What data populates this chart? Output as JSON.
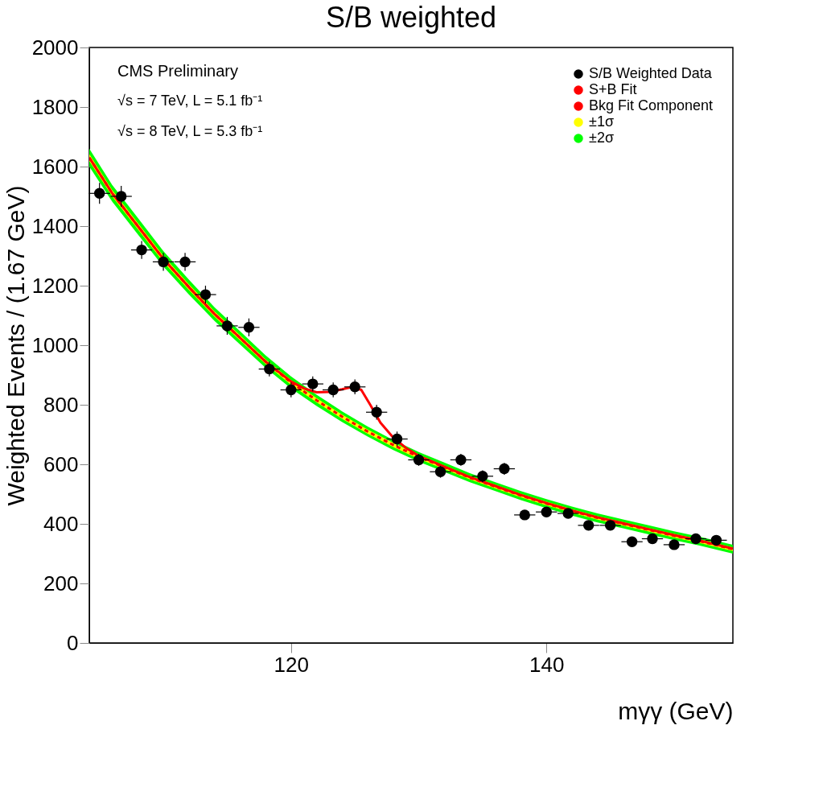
{
  "chart_data": {
    "type": "scatter",
    "title": "S/B weighted",
    "xlabel": "mγγ (GeV)",
    "ylabel": "Weighted Events / (1.67 GeV)",
    "annotations": [
      "CMS Preliminary",
      "√s = 7 TeV, L = 5.1 fb⁻¹",
      "√s = 8 TeV, L = 5.3 fb⁻¹"
    ],
    "xlim": [
      104.2,
      154.6
    ],
    "xticks": [
      120,
      140
    ],
    "ylim": [
      0,
      2000
    ],
    "yticks": [
      0,
      200,
      400,
      600,
      800,
      1000,
      1200,
      1400,
      1600,
      1800,
      2000
    ],
    "grid": false,
    "legend": "top right",
    "series": [
      {
        "name": "±2σ",
        "type": "area",
        "color": "#00ff00",
        "values": [
          null,
          null,
          null,
          null,
          null,
          null,
          null,
          null,
          null,
          null,
          null,
          null,
          null,
          null,
          null,
          null,
          null,
          null,
          null,
          null,
          null,
          null,
          null,
          null,
          null,
          null
        ],
        "x": [
          104.2,
          106,
          108,
          110,
          112,
          114,
          116,
          118,
          120,
          122,
          124,
          126,
          128,
          130,
          132,
          134,
          136,
          138,
          140,
          142,
          144,
          146,
          148,
          150,
          152,
          154.6
        ],
        "lower": [
          1600,
          1482,
          1372,
          1264,
          1170,
          1082,
          1003,
          924,
          855,
          796,
          742,
          693,
          648,
          609,
          574,
          540,
          510,
          480,
          453,
          428,
          405,
          385,
          365,
          345,
          327,
          300
        ],
        "upper": [
          1660,
          1538,
          1428,
          1316,
          1220,
          1128,
          1047,
          966,
          895,
          834,
          778,
          727,
          682,
          641,
          606,
          570,
          540,
          510,
          483,
          458,
          435,
          415,
          395,
          375,
          357,
          330
        ]
      },
      {
        "name": "±1σ",
        "type": "area",
        "color": "#ffff00",
        "values": [
          null,
          null,
          null,
          null,
          null,
          null,
          null,
          null,
          null,
          null,
          null,
          null,
          null,
          null,
          null,
          null,
          null,
          null,
          null,
          null,
          null,
          null,
          null,
          null,
          null,
          null
        ],
        "x": [
          104.2,
          106,
          108,
          110,
          112,
          114,
          116,
          118,
          120,
          122,
          124,
          126,
          128,
          130,
          132,
          134,
          136,
          138,
          140,
          142,
          144,
          146,
          148,
          150,
          152,
          154.6
        ],
        "lower": [
          1618,
          1499,
          1389,
          1280,
          1185,
          1096,
          1016,
          937,
          867,
          808,
          753,
          703,
          658,
          618,
          584,
          549,
          519,
          489,
          462,
          437,
          414,
          394,
          374,
          354,
          336,
          309
        ],
        "upper": [
          1642,
          1521,
          1411,
          1300,
          1205,
          1114,
          1034,
          953,
          883,
          822,
          767,
          717,
          672,
          632,
          596,
          561,
          531,
          501,
          474,
          449,
          426,
          406,
          386,
          366,
          348,
          321
        ]
      },
      {
        "name": "Bkg Fit Component",
        "type": "line",
        "line_style": "dashed",
        "color": "#ff0000",
        "x": [
          104.2,
          106,
          108,
          110,
          112,
          114,
          116,
          118,
          120,
          122,
          124,
          126,
          128,
          130,
          132,
          134,
          136,
          138,
          140,
          142,
          144,
          146,
          148,
          150,
          152,
          154.6
        ],
        "values": [
          1630,
          1510,
          1400,
          1290,
          1195,
          1105,
          1025,
          945,
          875,
          815,
          760,
          710,
          665,
          625,
          590,
          555,
          525,
          495,
          468,
          443,
          420,
          400,
          380,
          360,
          342,
          315
        ]
      },
      {
        "name": "S+B Fit",
        "type": "line",
        "line_style": "solid",
        "color": "#ff0000",
        "x": [
          104.2,
          106,
          108,
          110,
          112,
          114,
          116,
          118,
          120,
          121,
          122,
          123,
          124,
          124.8,
          125.5,
          126.2,
          127,
          128,
          129,
          130,
          132,
          134,
          136,
          138,
          140,
          142,
          144,
          146,
          148,
          150,
          152,
          154.6
        ],
        "values": [
          1630,
          1510,
          1400,
          1290,
          1195,
          1105,
          1025,
          945,
          878,
          855,
          842,
          843,
          852,
          860,
          850,
          800,
          740,
          690,
          655,
          628,
          592,
          557,
          527,
          497,
          470,
          445,
          422,
          402,
          382,
          362,
          344,
          317
        ]
      },
      {
        "name": "S/B Weighted Data",
        "marker": "circle",
        "color": "#000000",
        "x": [
          105.0,
          106.7,
          108.3,
          110.0,
          111.7,
          113.3,
          115.0,
          116.7,
          118.3,
          120.0,
          121.7,
          123.3,
          125.0,
          126.7,
          128.3,
          130.0,
          131.7,
          133.3,
          135.0,
          136.7,
          138.3,
          140.0,
          141.7,
          143.3,
          145.0,
          146.7,
          148.3,
          150.0,
          151.7,
          153.3
        ],
        "values": [
          1510,
          1500,
          1320,
          1280,
          1280,
          1170,
          1065,
          1060,
          920,
          850,
          870,
          850,
          860,
          775,
          685,
          615,
          575,
          615,
          560,
          585,
          430,
          440,
          435,
          395,
          395,
          340,
          350,
          330,
          350,
          345
        ],
        "errors": [
          35,
          35,
          30,
          30,
          30,
          30,
          30,
          30,
          25,
          25,
          25,
          25,
          25,
          25,
          25,
          20,
          20,
          20,
          20,
          20,
          15,
          15,
          15,
          15,
          15,
          15,
          15,
          15,
          15,
          15
        ],
        "xerrors": [
          0.83,
          0.83,
          0.83,
          0.83,
          0.83,
          0.83,
          0.83,
          0.83,
          0.83,
          0.83,
          0.83,
          0.83,
          0.83,
          0.83,
          0.83,
          0.83,
          0.83,
          0.83,
          0.83,
          0.83,
          0.83,
          0.83,
          0.83,
          0.83,
          0.83,
          0.83,
          0.83,
          0.83,
          0.83,
          0.83
        ]
      }
    ]
  }
}
